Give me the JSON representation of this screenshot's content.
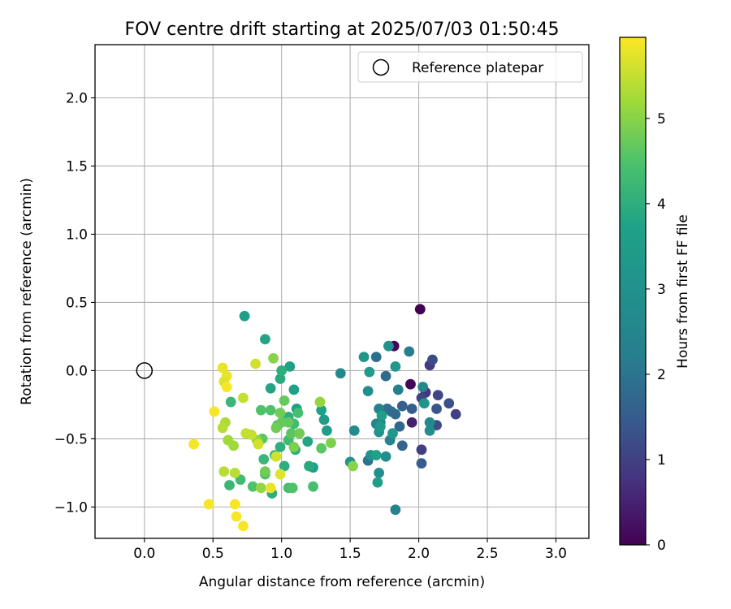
{
  "chart_data": {
    "type": "scatter",
    "title": "FOV centre drift starting at 2025/07/03 01:50:45",
    "xlabel": "Angular distance from reference (arcmin)",
    "ylabel": "Rotation from reference (arcmin)",
    "xlim": [
      -0.36,
      3.24
    ],
    "ylim": [
      -1.23,
      2.39
    ],
    "xticks": [
      0.0,
      0.5,
      1.0,
      1.5,
      2.0,
      2.5,
      3.0
    ],
    "xtick_labels": [
      "0.0",
      "0.5",
      "1.0",
      "1.5",
      "2.0",
      "2.5",
      "3.0"
    ],
    "yticks": [
      -1.0,
      -0.5,
      0.0,
      0.5,
      1.0,
      1.5,
      2.0
    ],
    "ytick_labels": [
      "−1.0",
      "−0.5",
      "0.0",
      "0.5",
      "1.0",
      "1.5",
      "2.0"
    ],
    "grid": true,
    "legend": {
      "position": "top-right",
      "entries": [
        {
          "label": "Reference platepar",
          "marker": "open-circle"
        }
      ]
    },
    "reference_point": {
      "x": 0.0,
      "y": 0.0
    },
    "colorbar": {
      "label": "Hours from first FF file",
      "range": [
        0,
        5.95
      ],
      "ticks": [
        0,
        1,
        2,
        3,
        4,
        5
      ],
      "tick_labels": [
        "0",
        "1",
        "2",
        "3",
        "4",
        "5"
      ],
      "colormap": "viridis"
    },
    "points": [
      {
        "x": 2.01,
        "y": 0.45,
        "t": 0.0
      },
      {
        "x": 1.82,
        "y": 0.18,
        "t": 0.1
      },
      {
        "x": 1.94,
        "y": -0.1,
        "t": 0.1
      },
      {
        "x": 1.95,
        "y": -0.38,
        "t": 0.5
      },
      {
        "x": 2.05,
        "y": -0.16,
        "t": 0.8
      },
      {
        "x": 2.08,
        "y": 0.04,
        "t": 0.9
      },
      {
        "x": 2.02,
        "y": -0.58,
        "t": 1.0
      },
      {
        "x": 2.02,
        "y": -0.2,
        "t": 1.1
      },
      {
        "x": 2.14,
        "y": -0.18,
        "t": 1.1
      },
      {
        "x": 2.27,
        "y": -0.32,
        "t": 1.0
      },
      {
        "x": 2.1,
        "y": 0.08,
        "t": 1.2
      },
      {
        "x": 2.13,
        "y": -0.4,
        "t": 1.2
      },
      {
        "x": 2.02,
        "y": -0.68,
        "t": 1.5
      },
      {
        "x": 2.22,
        "y": -0.24,
        "t": 1.3
      },
      {
        "x": 2.13,
        "y": -0.28,
        "t": 1.4
      },
      {
        "x": 1.95,
        "y": -0.28,
        "t": 1.5
      },
      {
        "x": 1.88,
        "y": -0.26,
        "t": 1.6
      },
      {
        "x": 1.88,
        "y": -0.55,
        "t": 1.7
      },
      {
        "x": 1.86,
        "y": -0.41,
        "t": 1.7
      },
      {
        "x": 1.83,
        "y": -0.32,
        "t": 1.8
      },
      {
        "x": 1.8,
        "y": -0.3,
        "t": 1.8
      },
      {
        "x": 1.77,
        "y": -0.28,
        "t": 1.9
      },
      {
        "x": 1.76,
        "y": -0.04,
        "t": 1.8
      },
      {
        "x": 1.69,
        "y": 0.1,
        "t": 1.9
      },
      {
        "x": 1.63,
        "y": -0.66,
        "t": 2.0
      },
      {
        "x": 1.72,
        "y": -0.38,
        "t": 2.1
      },
      {
        "x": 1.93,
        "y": 0.14,
        "t": 2.2
      },
      {
        "x": 1.85,
        "y": -0.14,
        "t": 2.3
      },
      {
        "x": 1.83,
        "y": -1.02,
        "t": 2.4
      },
      {
        "x": 1.79,
        "y": -0.51,
        "t": 2.4
      },
      {
        "x": 1.71,
        "y": -0.28,
        "t": 2.4
      },
      {
        "x": 1.69,
        "y": -0.39,
        "t": 2.5
      },
      {
        "x": 2.03,
        "y": -0.12,
        "t": 2.6
      },
      {
        "x": 2.08,
        "y": -0.38,
        "t": 2.7
      },
      {
        "x": 2.08,
        "y": -0.44,
        "t": 2.8
      },
      {
        "x": 1.76,
        "y": -0.63,
        "t": 2.8
      },
      {
        "x": 1.43,
        "y": -0.02,
        "t": 2.6
      },
      {
        "x": 1.53,
        "y": -0.44,
        "t": 2.7
      },
      {
        "x": 1.71,
        "y": -0.75,
        "t": 2.9
      },
      {
        "x": 1.63,
        "y": -0.15,
        "t": 2.9
      },
      {
        "x": 1.71,
        "y": -0.45,
        "t": 3.0
      },
      {
        "x": 1.78,
        "y": 0.18,
        "t": 3.0
      },
      {
        "x": 1.65,
        "y": -0.62,
        "t": 3.1
      },
      {
        "x": 1.6,
        "y": 0.1,
        "t": 3.2
      },
      {
        "x": 1.81,
        "y": -0.46,
        "t": 3.3
      },
      {
        "x": 1.83,
        "y": 0.03,
        "t": 3.3
      },
      {
        "x": 2.04,
        "y": -0.24,
        "t": 3.2
      },
      {
        "x": 1.5,
        "y": -0.67,
        "t": 3.1
      },
      {
        "x": 1.72,
        "y": -0.41,
        "t": 3.4
      },
      {
        "x": 1.64,
        "y": -0.01,
        "t": 3.4
      },
      {
        "x": 1.73,
        "y": -0.33,
        "t": 3.6
      },
      {
        "x": 1.7,
        "y": -0.82,
        "t": 3.6
      },
      {
        "x": 1.69,
        "y": -0.62,
        "t": 3.7
      },
      {
        "x": 1.31,
        "y": -0.36,
        "t": 3.5
      },
      {
        "x": 1.33,
        "y": -0.44,
        "t": 3.5
      },
      {
        "x": 1.23,
        "y": -0.71,
        "t": 3.6
      },
      {
        "x": 1.11,
        "y": -0.28,
        "t": 3.6
      },
      {
        "x": 1.29,
        "y": -0.29,
        "t": 3.7
      },
      {
        "x": 1.06,
        "y": 0.03,
        "t": 3.7
      },
      {
        "x": 1.09,
        "y": -0.14,
        "t": 3.7
      },
      {
        "x": 0.73,
        "y": 0.4,
        "t": 3.6
      },
      {
        "x": 0.88,
        "y": 0.23,
        "t": 3.8
      },
      {
        "x": 0.92,
        "y": -0.13,
        "t": 3.8
      },
      {
        "x": 0.99,
        "y": -0.06,
        "t": 3.9
      },
      {
        "x": 1.0,
        "y": 0.0,
        "t": 4.0
      },
      {
        "x": 1.19,
        "y": -0.52,
        "t": 3.8
      },
      {
        "x": 1.2,
        "y": -0.7,
        "t": 3.9
      },
      {
        "x": 1.1,
        "y": -0.58,
        "t": 4.0
      },
      {
        "x": 1.05,
        "y": -0.34,
        "t": 4.0
      },
      {
        "x": 1.02,
        "y": -0.7,
        "t": 4.0
      },
      {
        "x": 0.99,
        "y": -0.56,
        "t": 4.0
      },
      {
        "x": 0.93,
        "y": -0.9,
        "t": 4.0
      },
      {
        "x": 0.87,
        "y": -0.65,
        "t": 4.2
      },
      {
        "x": 0.95,
        "y": -0.62,
        "t": 4.2
      },
      {
        "x": 0.62,
        "y": -0.84,
        "t": 4.2
      },
      {
        "x": 0.63,
        "y": -0.23,
        "t": 4.2
      },
      {
        "x": 0.7,
        "y": -0.8,
        "t": 4.3
      },
      {
        "x": 1.05,
        "y": -0.51,
        "t": 4.3
      },
      {
        "x": 1.09,
        "y": -0.39,
        "t": 4.3
      },
      {
        "x": 1.12,
        "y": -0.31,
        "t": 4.4
      },
      {
        "x": 1.23,
        "y": -0.85,
        "t": 4.4
      },
      {
        "x": 1.05,
        "y": -0.86,
        "t": 4.4
      },
      {
        "x": 1.08,
        "y": -0.86,
        "t": 4.5
      },
      {
        "x": 0.97,
        "y": -0.4,
        "t": 4.5
      },
      {
        "x": 0.92,
        "y": -0.29,
        "t": 4.5
      },
      {
        "x": 0.88,
        "y": -0.76,
        "t": 4.5
      },
      {
        "x": 0.79,
        "y": -0.85,
        "t": 4.5
      },
      {
        "x": 0.85,
        "y": -0.29,
        "t": 4.5
      },
      {
        "x": 1.07,
        "y": -0.46,
        "t": 4.6
      },
      {
        "x": 0.86,
        "y": -0.5,
        "t": 4.6
      },
      {
        "x": 1.29,
        "y": -0.57,
        "t": 4.6
      },
      {
        "x": 1.02,
        "y": -0.22,
        "t": 4.7
      },
      {
        "x": 1.05,
        "y": -0.38,
        "t": 4.7
      },
      {
        "x": 1.0,
        "y": -0.38,
        "t": 4.7
      },
      {
        "x": 0.96,
        "y": -0.42,
        "t": 4.8
      },
      {
        "x": 0.99,
        "y": -0.31,
        "t": 4.8
      },
      {
        "x": 1.13,
        "y": -0.46,
        "t": 4.8
      },
      {
        "x": 0.88,
        "y": -0.74,
        "t": 4.8
      },
      {
        "x": 1.36,
        "y": -0.53,
        "t": 4.9
      },
      {
        "x": 1.09,
        "y": -0.56,
        "t": 4.9
      },
      {
        "x": 1.52,
        "y": -0.7,
        "t": 5.0
      },
      {
        "x": 0.94,
        "y": 0.09,
        "t": 5.0
      },
      {
        "x": 1.28,
        "y": -0.23,
        "t": 5.1
      },
      {
        "x": 0.82,
        "y": -0.51,
        "t": 5.1
      },
      {
        "x": 0.85,
        "y": -0.86,
        "t": 5.1
      },
      {
        "x": 0.61,
        "y": -0.51,
        "t": 5.2
      },
      {
        "x": 0.65,
        "y": -0.55,
        "t": 5.2
      },
      {
        "x": 0.59,
        "y": -0.38,
        "t": 5.3
      },
      {
        "x": 0.57,
        "y": -0.42,
        "t": 5.4
      },
      {
        "x": 0.66,
        "y": -0.75,
        "t": 5.4
      },
      {
        "x": 0.58,
        "y": -0.74,
        "t": 5.4
      },
      {
        "x": 0.72,
        "y": -0.2,
        "t": 5.5
      },
      {
        "x": 0.74,
        "y": -0.46,
        "t": 5.5
      },
      {
        "x": 0.78,
        "y": -0.47,
        "t": 5.5
      },
      {
        "x": 0.81,
        "y": 0.05,
        "t": 5.6
      },
      {
        "x": 0.83,
        "y": -0.54,
        "t": 5.6
      },
      {
        "x": 0.96,
        "y": -0.63,
        "t": 5.6
      },
      {
        "x": 0.99,
        "y": -0.76,
        "t": 5.7
      },
      {
        "x": 0.92,
        "y": -0.86,
        "t": 5.8
      },
      {
        "x": 0.6,
        "y": -0.04,
        "t": 5.8
      },
      {
        "x": 0.58,
        "y": -0.08,
        "t": 5.7
      },
      {
        "x": 0.57,
        "y": 0.02,
        "t": 5.8
      },
      {
        "x": 0.6,
        "y": -0.12,
        "t": 5.9
      },
      {
        "x": 0.51,
        "y": -0.3,
        "t": 5.9
      },
      {
        "x": 0.36,
        "y": -0.54,
        "t": 5.9
      },
      {
        "x": 0.47,
        "y": -0.98,
        "t": 5.9
      },
      {
        "x": 0.66,
        "y": -0.98,
        "t": 5.9
      },
      {
        "x": 0.67,
        "y": -1.07,
        "t": 5.9
      },
      {
        "x": 0.72,
        "y": -1.14,
        "t": 5.9
      }
    ]
  }
}
